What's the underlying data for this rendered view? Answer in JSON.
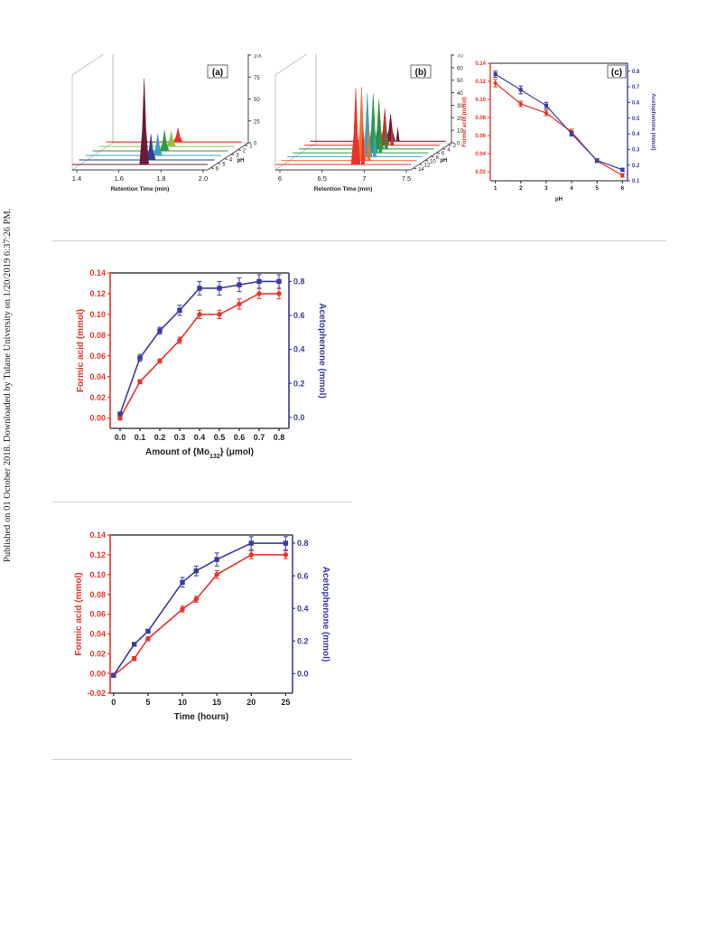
{
  "sidebar": {
    "note": "Published on 01 October 2018. Downloaded by Tulane University on 1/20/2019 6:37:26 PM."
  },
  "colors": {
    "formic": "#e8332a",
    "aceto": "#3b3b9e",
    "grid": "#999999"
  },
  "chart_data": [
    {
      "type": "area",
      "panel_label": "(a)",
      "xlabel": "Retention Time (min)",
      "zlabel": "Relative Abundance (%)",
      "ylabel": "pH",
      "x_ticks": [
        "1.4",
        "1.6",
        "1.8",
        "2.0"
      ],
      "z_ticks": [
        "0",
        "25",
        "50",
        "75",
        "100"
      ],
      "y_ticks": [
        "1",
        "2",
        "3",
        "4",
        "5",
        "6"
      ],
      "series": [
        {
          "ph": 1,
          "peak_time": 1.72,
          "height": 100,
          "color": "#6b1b3a"
        },
        {
          "ph": 2,
          "peak_time": 1.72,
          "height": 30,
          "color": "#2f3e8f"
        },
        {
          "ph": 3,
          "peak_time": 1.72,
          "height": 25,
          "color": "#3aa0c8"
        },
        {
          "ph": 4,
          "peak_time": 1.72,
          "height": 24,
          "color": "#2a9a4a"
        },
        {
          "ph": 5,
          "peak_time": 1.72,
          "height": 18,
          "color": "#8cc43c"
        },
        {
          "ph": 6,
          "peak_time": 1.72,
          "height": 16,
          "color": "#e8332a"
        }
      ]
    },
    {
      "type": "area",
      "panel_label": "(b)",
      "xlabel": "Retention Time (min)",
      "zlabel": "Relative Abundance (%)",
      "ylabel": "pH",
      "x_ticks": [
        "6",
        "6.5",
        "7",
        "7.5"
      ],
      "z_ticks": [
        "0",
        "10",
        "20",
        "30",
        "40",
        "50",
        "60",
        "70"
      ],
      "y_ticks": [
        "2",
        "4",
        "6",
        "8",
        "10",
        "12",
        "14"
      ],
      "series": [
        {
          "ph": 2,
          "peak_time": 6.9,
          "height": 62,
          "color": "#e8332a"
        },
        {
          "ph": 4,
          "peak_time": 6.9,
          "height": 60,
          "color": "#f07030"
        },
        {
          "ph": 6,
          "peak_time": 6.9,
          "height": 52,
          "color": "#3aa0c8"
        },
        {
          "ph": 8,
          "peak_time": 6.9,
          "height": 48,
          "color": "#2a9a4a"
        },
        {
          "ph": 10,
          "peak_time": 6.9,
          "height": 40,
          "color": "#3a8a3a"
        },
        {
          "ph": 12,
          "peak_time": 6.9,
          "height": 30,
          "color": "#c43030"
        },
        {
          "ph": 14,
          "peak_time": 6.9,
          "height": 22,
          "color": "#6b1b3a"
        }
      ]
    },
    {
      "type": "line",
      "panel_label": "(c)",
      "xlabel": "pH",
      "ylabel": "Formic acid (mmol)",
      "ylabel_right": "Acetophenone (mmol)",
      "x": [
        1,
        2,
        3,
        4,
        5,
        6
      ],
      "xlim": [
        0.8,
        6.2
      ],
      "ylim": [
        0.01,
        0.14
      ],
      "ylim_right": [
        0.1,
        0.85
      ],
      "y_ticks": [
        "0.02",
        "0.04",
        "0.06",
        "0.08",
        "0.10",
        "0.12",
        "0.14"
      ],
      "y_ticks_right": [
        "0.1",
        "0.2",
        "0.3",
        "0.4",
        "0.5",
        "0.6",
        "0.7",
        "0.8"
      ],
      "x_ticks": [
        "1",
        "2",
        "3",
        "4",
        "5",
        "6"
      ],
      "series": [
        {
          "name": "Formic acid (mmol)",
          "axis": "left",
          "values": [
            0.118,
            0.095,
            0.085,
            0.064,
            0.032,
            0.016
          ],
          "err": [
            0.004,
            0.003,
            0.003,
            0.003,
            0.002,
            0.002
          ]
        },
        {
          "name": "Acetophenone (mmol)",
          "axis": "right",
          "values": [
            0.78,
            0.68,
            0.58,
            0.4,
            0.23,
            0.17
          ],
          "err": [
            0.02,
            0.025,
            0.02,
            0.015,
            0.01,
            0.01
          ]
        }
      ]
    },
    {
      "type": "line",
      "xlabel": "Amount of {Mo",
      "xlabel_sub": "132",
      "xlabel_tail": "} (μmol)",
      "ylabel": "Formic acid (mmol)",
      "ylabel_right": "Acetophenone (mmol)",
      "x": [
        0.0,
        0.1,
        0.2,
        0.3,
        0.4,
        0.5,
        0.6,
        0.7,
        0.8
      ],
      "xlim": [
        -0.05,
        0.85
      ],
      "ylim": [
        -0.01,
        0.14
      ],
      "ylim_right": [
        -0.065,
        0.85
      ],
      "x_ticks": [
        "0.0",
        "0.1",
        "0.2",
        "0.3",
        "0.4",
        "0.5",
        "0.6",
        "0.7",
        "0.8"
      ],
      "y_ticks": [
        "0.00",
        "0.02",
        "0.04",
        "0.06",
        "0.08",
        "0.10",
        "0.12",
        "0.14"
      ],
      "y_ticks_right": [
        "0.0",
        "0.2",
        "0.4",
        "0.6",
        "0.8"
      ],
      "series": [
        {
          "name": "Formic acid (mmol)",
          "axis": "left",
          "values": [
            0.0,
            0.035,
            0.055,
            0.075,
            0.1,
            0.1,
            0.11,
            0.12,
            0.12
          ],
          "err": [
            0.002,
            0.002,
            0.002,
            0.003,
            0.004,
            0.004,
            0.005,
            0.005,
            0.005
          ]
        },
        {
          "name": "Acetophenone (mmol)",
          "axis": "right",
          "values": [
            0.02,
            0.35,
            0.51,
            0.63,
            0.76,
            0.76,
            0.78,
            0.8,
            0.8
          ],
          "err": [
            0.01,
            0.02,
            0.02,
            0.03,
            0.04,
            0.04,
            0.04,
            0.04,
            0.04
          ]
        }
      ]
    },
    {
      "type": "line",
      "xlabel": "Time (hours)",
      "ylabel": "Formic acid (mmol)",
      "ylabel_right": "Acetophenone (mmol)",
      "x": [
        0,
        3,
        5,
        10,
        12,
        15,
        20,
        25
      ],
      "xlim": [
        -0.5,
        26
      ],
      "ylim": [
        -0.02,
        0.14
      ],
      "ylim_right": [
        -0.12,
        0.85
      ],
      "x_ticks": [
        "0",
        "5",
        "10",
        "15",
        "20",
        "25"
      ],
      "y_ticks": [
        "-0.02",
        "0.00",
        "0.02",
        "0.04",
        "0.06",
        "0.08",
        "0.10",
        "0.12",
        "0.14"
      ],
      "y_ticks_right": [
        "0.0",
        "0.2",
        "0.4",
        "0.6",
        "0.8"
      ],
      "series": [
        {
          "name": "Formic acid (mmol)",
          "axis": "left",
          "values": [
            -0.002,
            0.015,
            0.035,
            0.065,
            0.075,
            0.1,
            0.12,
            0.12
          ],
          "err": [
            0.002,
            0.002,
            0.002,
            0.003,
            0.003,
            0.004,
            0.004,
            0.004
          ]
        },
        {
          "name": "Acetophenone (mmol)",
          "axis": "right",
          "values": [
            -0.01,
            0.18,
            0.26,
            0.56,
            0.63,
            0.7,
            0.8,
            0.8
          ],
          "err": [
            0.01,
            0.01,
            0.01,
            0.03,
            0.03,
            0.04,
            0.04,
            0.04
          ]
        }
      ]
    }
  ]
}
